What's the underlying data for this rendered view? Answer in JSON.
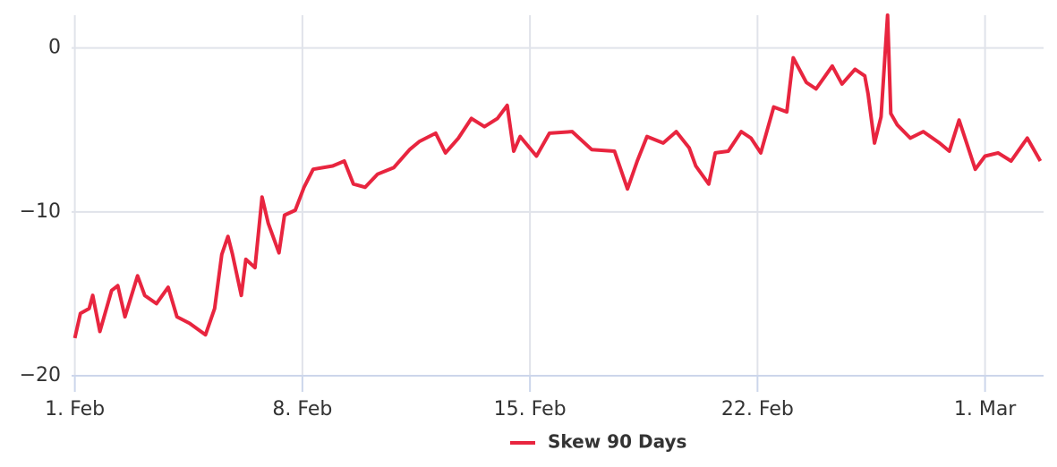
{
  "chart_data": {
    "type": "line",
    "x": [
      0,
      0.17,
      0.44,
      0.55,
      0.77,
      1.13,
      1.32,
      1.54,
      1.93,
      2.15,
      2.51,
      2.87,
      3.14,
      3.53,
      4.02,
      4.3,
      4.52,
      4.71,
      4.85,
      5.12,
      5.26,
      5.54,
      5.76,
      5.95,
      6.28,
      6.45,
      6.78,
      7.05,
      7.33,
      7.93,
      8.29,
      8.57,
      8.93,
      9.31,
      9.81,
      10.3,
      10.6,
      11.1,
      11.4,
      11.8,
      12.2,
      12.6,
      13.0,
      13.3,
      13.5,
      13.7,
      14.2,
      14.6,
      15.3,
      15.9,
      16.6,
      17.0,
      17.3,
      17.6,
      18.1,
      18.5,
      18.9,
      19.1,
      19.5,
      19.7,
      20.1,
      20.5,
      20.8,
      21.1,
      21.5,
      21.9,
      22.1,
      22.5,
      22.8,
      23.3,
      23.6,
      24.0,
      24.3,
      24.4,
      24.6,
      24.8,
      25.0,
      25.1,
      25.3,
      25.7,
      26.1,
      26.6,
      26.9,
      27.2,
      27.7,
      28.0,
      28.4,
      28.8,
      29.3,
      29.7
    ],
    "series": [
      {
        "name": "Skew 90 Days",
        "color": "#e8253f",
        "values": [
          -17.7,
          -16.2,
          -15.9,
          -15.1,
          -17.3,
          -14.8,
          -14.5,
          -16.4,
          -13.9,
          -15.1,
          -15.6,
          -14.6,
          -16.4,
          -16.8,
          -17.5,
          -15.9,
          -12.6,
          -11.5,
          -12.6,
          -15.1,
          -12.9,
          -13.4,
          -9.1,
          -10.7,
          -12.5,
          -10.2,
          -9.9,
          -8.5,
          -7.4,
          -7.2,
          -6.9,
          -8.3,
          -8.5,
          -7.7,
          -7.3,
          -6.2,
          -5.7,
          -5.2,
          -6.4,
          -5.5,
          -4.3,
          -4.8,
          -4.3,
          -3.5,
          -6.3,
          -5.4,
          -6.6,
          -5.2,
          -5.1,
          -6.2,
          -6.3,
          -8.6,
          -6.9,
          -5.4,
          -5.8,
          -5.1,
          -6.1,
          -7.2,
          -8.3,
          -6.4,
          -6.3,
          -5.1,
          -5.5,
          -6.4,
          -3.6,
          -3.9,
          -0.6,
          -2.1,
          -2.5,
          -1.1,
          -2.2,
          -1.3,
          -1.7,
          -2.8,
          -5.8,
          -4.2,
          2.0,
          -4.0,
          -4.7,
          -5.5,
          -5.1,
          -5.8,
          -6.3,
          -4.4,
          -7.4,
          -6.6,
          -6.4,
          -6.9,
          -5.5,
          -6.9
        ]
      }
    ],
    "xlim": [
      -0.1,
      29.8
    ],
    "xticks": [
      {
        "value": 0,
        "label": "1. Feb"
      },
      {
        "value": 7,
        "label": "8. Feb"
      },
      {
        "value": 14,
        "label": "15. Feb"
      },
      {
        "value": 21,
        "label": "22. Feb"
      },
      {
        "value": 28,
        "label": "1. Mar"
      }
    ],
    "ylim": [
      -20,
      2
    ],
    "yticks": [
      {
        "value": -20,
        "label": "−20"
      },
      {
        "value": -10,
        "label": "−10"
      },
      0
    ],
    "grid": true,
    "legend": "bottom"
  }
}
